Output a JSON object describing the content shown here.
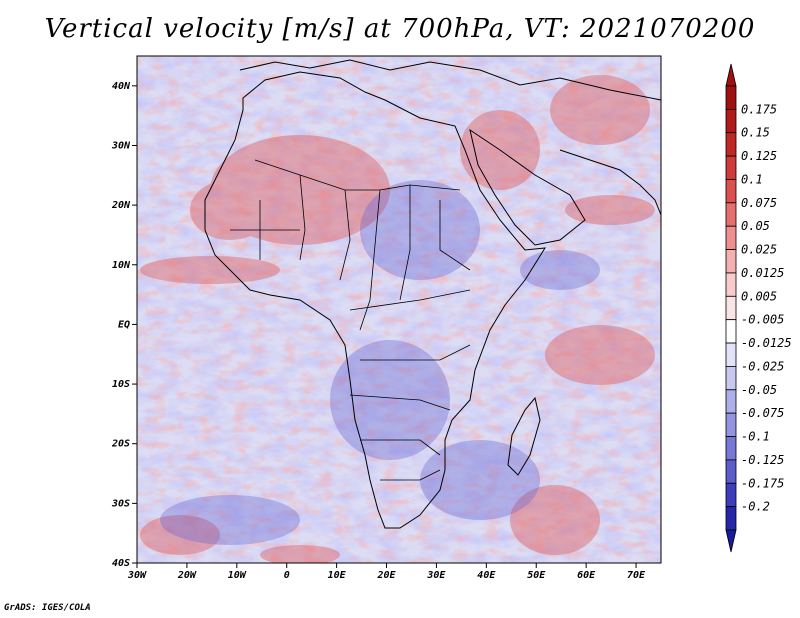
{
  "title": "Vertical velocity [m/s] at 700hPa, VT: 2021070200",
  "credit": "GrADS: IGES/COLA",
  "map": {
    "lon_range": [
      -30,
      75
    ],
    "lat_range": [
      -40,
      45
    ],
    "lon_ticks": [
      {
        "value": -30,
        "label": "30W"
      },
      {
        "value": -20,
        "label": "20W"
      },
      {
        "value": -10,
        "label": "10W"
      },
      {
        "value": 0,
        "label": "0"
      },
      {
        "value": 10,
        "label": "10E"
      },
      {
        "value": 20,
        "label": "20E"
      },
      {
        "value": 30,
        "label": "30E"
      },
      {
        "value": 40,
        "label": "40E"
      },
      {
        "value": 50,
        "label": "50E"
      },
      {
        "value": 60,
        "label": "60E"
      },
      {
        "value": 70,
        "label": "70E"
      }
    ],
    "lat_ticks": [
      {
        "value": 40,
        "label": "40N"
      },
      {
        "value": 30,
        "label": "30N"
      },
      {
        "value": 20,
        "label": "20N"
      },
      {
        "value": 10,
        "label": "10N"
      },
      {
        "value": 0,
        "label": "EQ"
      },
      {
        "value": -10,
        "label": "10S"
      },
      {
        "value": -20,
        "label": "20S"
      },
      {
        "value": -30,
        "label": "30S"
      },
      {
        "value": -40,
        "label": "40S"
      }
    ]
  },
  "colorbar": {
    "levels": [
      {
        "label": "0.175",
        "color": "#b01a1a"
      },
      {
        "label": "0.15",
        "color": "#c02828"
      },
      {
        "label": "0.125",
        "color": "#d03a3a"
      },
      {
        "label": "0.1",
        "color": "#dc5050"
      },
      {
        "label": "0.075",
        "color": "#e67070"
      },
      {
        "label": "0.05",
        "color": "#ee9090"
      },
      {
        "label": "0.025",
        "color": "#f4b0b0"
      },
      {
        "label": "0.0125",
        "color": "#f8cccc"
      },
      {
        "label": "0.005",
        "color": "#fbe4e4"
      },
      {
        "label": "-0.005",
        "color": "#ffffff"
      },
      {
        "label": "-0.0125",
        "color": "#e2e2f8"
      },
      {
        "label": "-0.025",
        "color": "#c8c8f0"
      },
      {
        "label": "-0.05",
        "color": "#aeaee8"
      },
      {
        "label": "-0.075",
        "color": "#9494e0"
      },
      {
        "label": "-0.1",
        "color": "#7878d6"
      },
      {
        "label": "-0.125",
        "color": "#5c5cca"
      },
      {
        "label": "-0.175",
        "color": "#3e3ebc"
      },
      {
        "label": "-0.2",
        "color": "#2626aa"
      }
    ],
    "top_color": "#a01010",
    "bottom_color": "#1a1a9c"
  }
}
